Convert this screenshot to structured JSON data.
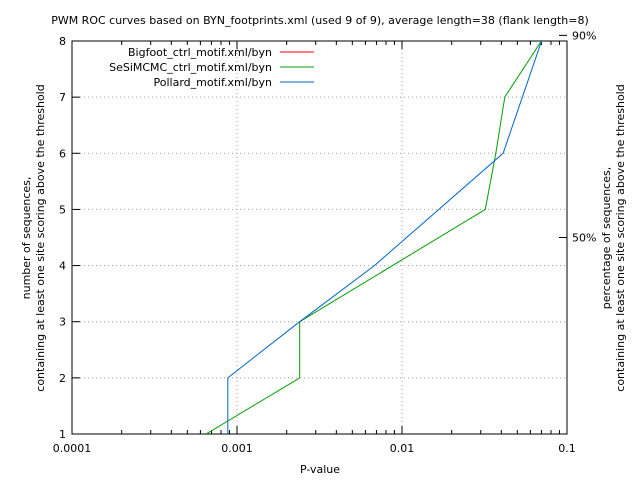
{
  "chart_data": {
    "type": "line",
    "title": "PWM ROC curves based on BYN_footprints.xml (used 9 of 9), average length=38 (flank length=8)",
    "xlabel": "P-value",
    "ylabel_lines": [
      "number of sequences,",
      "containing at least one site scoring above the threshold"
    ],
    "y2label_lines": [
      "percentage of sequences,",
      "containing at least one site scoring above the threshold"
    ],
    "xscale": "log",
    "xlim": [
      0.0001,
      0.1
    ],
    "ylim": [
      1,
      8
    ],
    "xticks": [
      0.0001,
      0.001,
      0.01,
      0.1
    ],
    "xtick_labels": [
      "0.0001",
      "0.001",
      "0.01",
      "0.1"
    ],
    "yticks": [
      1,
      2,
      3,
      4,
      5,
      6,
      7,
      8
    ],
    "ytick_labels": [
      "1",
      "2",
      "3",
      "4",
      "5",
      "6",
      "7",
      "8"
    ],
    "y2ticks": [
      4.5,
      8.1
    ],
    "y2tick_labels": [
      "50%",
      "90%"
    ],
    "grid": true,
    "legend_position": "top-left",
    "series": [
      {
        "name": "Bigfoot_ctrl_motif.xml/byn",
        "color": "#ff0000",
        "x": [],
        "y": []
      },
      {
        "name": "SeSiMCMC_ctrl_motif.xml/byn",
        "color": "#00a000",
        "x": [
          0.00065,
          0.0024,
          0.0024,
          0.032,
          0.037,
          0.042,
          0.07
        ],
        "y": [
          1,
          2,
          3,
          5,
          6,
          7,
          8
        ]
      },
      {
        "name": "Pollard_motif.xml/byn",
        "color": "#0066cc",
        "x": [
          0.00088,
          0.00088,
          0.0024,
          0.0068,
          0.041,
          0.072
        ],
        "y": [
          1,
          2,
          3,
          4,
          6,
          8.1
        ]
      }
    ]
  }
}
